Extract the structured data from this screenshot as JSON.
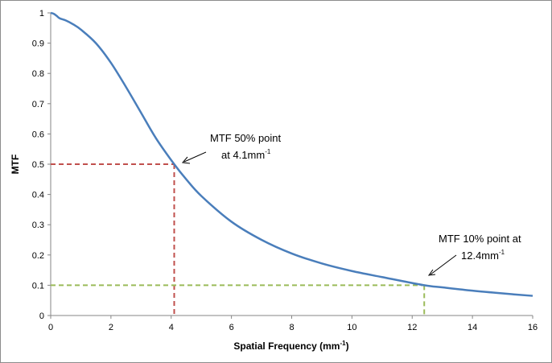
{
  "chart_data": {
    "type": "line",
    "title": "",
    "xlabel": "Spatial Frequency (mm",
    "xlabel_sup": "-1",
    "xlabel_end": ")",
    "ylabel": "MTF",
    "xlim": [
      0,
      16
    ],
    "ylim": [
      0,
      1
    ],
    "x_ticks": [
      0,
      2,
      4,
      6,
      8,
      10,
      12,
      14,
      16
    ],
    "y_ticks": [
      0,
      0.1,
      0.2,
      0.3,
      0.4,
      0.5,
      0.6,
      0.7,
      0.8,
      0.9,
      1
    ],
    "x_tick_labels": [
      "0",
      "2",
      "4",
      "6",
      "8",
      "10",
      "12",
      "14",
      "16"
    ],
    "y_tick_labels": [
      "0",
      "0.1",
      "0.2",
      "0.3",
      "0.4",
      "0.5",
      "0.6",
      "0.7",
      "0.8",
      "0.9",
      "1"
    ],
    "grid": false,
    "series": [
      {
        "color": "#4a7ebb",
        "x": [
          0,
          0.1,
          0.2,
          0.3,
          0.5,
          0.75,
          1.0,
          1.5,
          2.0,
          2.5,
          3.0,
          3.5,
          4.1,
          4.5,
          5.0,
          6.0,
          7.0,
          8.0,
          9.0,
          10.0,
          11.0,
          12.4,
          13.0,
          14.0,
          15.0,
          16.0
        ],
        "y": [
          1.0,
          0.997,
          0.99,
          0.982,
          0.975,
          0.962,
          0.945,
          0.9,
          0.835,
          0.755,
          0.67,
          0.585,
          0.5,
          0.45,
          0.395,
          0.31,
          0.25,
          0.205,
          0.172,
          0.147,
          0.127,
          0.1,
          0.093,
          0.082,
          0.073,
          0.065
        ]
      }
    ],
    "markers": [
      {
        "x": 4.1,
        "y": 0.5,
        "color": "#c0504d"
      },
      {
        "x": 12.4,
        "y": 0.1,
        "color": "#9bbb59"
      }
    ],
    "annotations": [
      {
        "line1": "MTF 50% point",
        "line2": "at 4.1mm",
        "sup": "-1"
      },
      {
        "line1": "MTF 10% point at",
        "line2": "12.4mm",
        "sup": "-1"
      }
    ]
  }
}
